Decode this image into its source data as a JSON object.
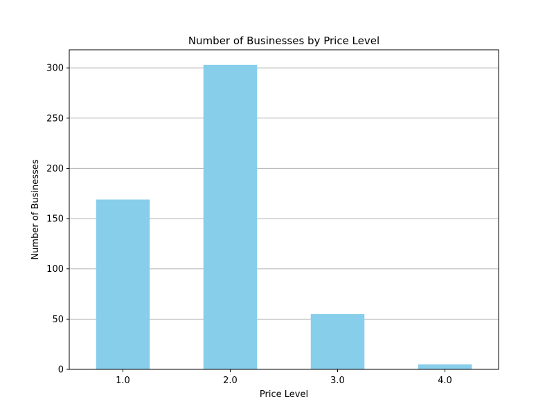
{
  "chart_data": {
    "type": "bar",
    "title": "Number of Businesses by Price Level",
    "xlabel": "Price Level",
    "ylabel": "Number of Businesses",
    "categories": [
      "1.0",
      "2.0",
      "3.0",
      "4.0"
    ],
    "values": [
      169,
      303,
      55,
      5
    ],
    "ylim": [
      0,
      318
    ],
    "yticks": [
      0,
      50,
      100,
      150,
      200,
      250,
      300
    ],
    "grid": "y",
    "legend": "none",
    "colors": {
      "bar": "#87CEEB",
      "grid": "#b0b0b0",
      "axis": "#000000"
    }
  }
}
